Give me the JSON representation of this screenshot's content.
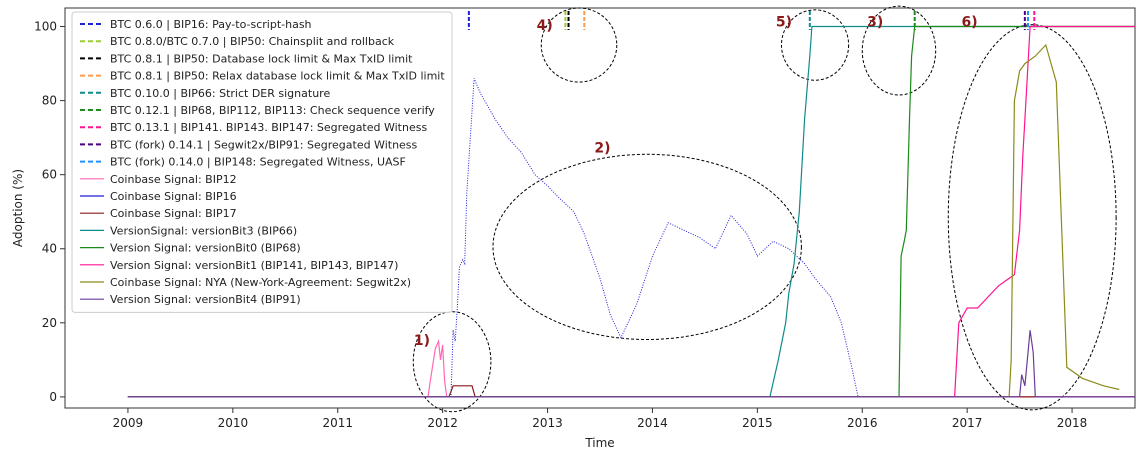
{
  "chart_data": {
    "type": "line",
    "title": "",
    "xlabel": "Time",
    "ylabel": "Adoption (%)",
    "xlim": [
      2008.4,
      2018.6
    ],
    "ylim": [
      -3,
      105
    ],
    "x_ticks": [
      2009,
      2010,
      2011,
      2012,
      2013,
      2014,
      2015,
      2016,
      2017,
      2018
    ],
    "y_ticks": [
      0,
      20,
      40,
      60,
      80,
      100
    ],
    "grid": false,
    "legend_position": "top-left",
    "release_markers": [
      {
        "name": "BTC 0.6.0 | BIP16: Pay-to-script-hash",
        "x": 2012.25,
        "color": "#1f1fd6",
        "style": "dashed"
      },
      {
        "name": "BTC 0.8.0/BTC 0.7.0 | BIP50: Chainsplit and rollback",
        "x": 2013.17,
        "color": "#9acd32",
        "style": "dashed"
      },
      {
        "name": "BTC 0.8.1 | BIP50: Database  lock limit & Max TxID limit",
        "x": 2013.2,
        "color": "#000000",
        "style": "dashed"
      },
      {
        "name": "BTC 0.8.1 | BIP50: Relax database lock limit & Max TxID limit",
        "x": 2013.35,
        "color": "#ff9a4d",
        "style": "dashed"
      },
      {
        "name": "BTC 0.10.0 | BIP66: Strict DER signature",
        "x": 2015.5,
        "color": "#108a8a",
        "style": "dashed"
      },
      {
        "name": "BTC 0.12.1 | BIP68, BIP112, BIP113: Check sequence verify",
        "x": 2016.5,
        "color": "#1a8a1a",
        "style": "dashed"
      },
      {
        "name": "BTC 0.13.1 | BIP141. BIP143. BIP147: Segregated Witness",
        "x": 2017.64,
        "color": "#ff1493",
        "style": "dashed"
      },
      {
        "name": "BTC (fork) 0.14.1 | Segwit2x/BIP91: Segregated Witness",
        "x": 2017.55,
        "color": "#4b0082",
        "style": "dashed"
      },
      {
        "name": "BTC (fork) 0.14.0 | BIP148: Segregated Witness, UASF",
        "x": 2017.58,
        "color": "#1e90ff",
        "style": "dashed"
      }
    ],
    "series": [
      {
        "name": "Coinbase Signal: BIP12",
        "color": "#ff69b4",
        "x": [
          2009,
          2011.86,
          2011.88,
          2011.93,
          2011.96,
          2011.98,
          2012.0,
          2012.02,
          2012.04,
          2018.6
        ],
        "y": [
          0,
          0,
          4,
          13,
          15,
          10,
          14,
          4,
          0,
          0
        ]
      },
      {
        "name": "Coinbase Signal: BIP16",
        "color": "#1f1fd6",
        "x": [
          2009,
          2012.08,
          2012.1,
          2012.12,
          2012.14,
          2012.16,
          2012.19,
          2012.21,
          2012.23,
          2012.3,
          2012.36,
          2012.5,
          2012.62,
          2012.75,
          2012.88,
          2013.0,
          2013.1,
          2013.25,
          2013.35,
          2013.5,
          2013.6,
          2013.7,
          2013.85,
          2014.0,
          2014.15,
          2014.3,
          2014.45,
          2014.6,
          2014.75,
          2014.9,
          2015.0,
          2015.15,
          2015.3,
          2015.45,
          2015.55,
          2015.7,
          2015.8,
          2015.9,
          2015.96
        ],
        "y": [
          0,
          0,
          18,
          15,
          24,
          35,
          37,
          36,
          55,
          86,
          82,
          75,
          70,
          66,
          60,
          57,
          54,
          50,
          44,
          32,
          22,
          16,
          25,
          38,
          47,
          45,
          43,
          40,
          49,
          44,
          38,
          42,
          40,
          36,
          32,
          27,
          20,
          8,
          0
        ]
      },
      {
        "name": "Coinbase Signal: BIP17",
        "color": "#8b1a1a",
        "x": [
          2009,
          2012.06,
          2012.1,
          2012.2,
          2012.28,
          2012.31,
          2018.6
        ],
        "y": [
          0,
          0,
          3,
          3,
          3,
          0,
          0
        ]
      },
      {
        "name": "VersionSignal: versionBit3 (BIP66)",
        "color": "#108a8a",
        "x": [
          2009,
          2015.12,
          2015.2,
          2015.27,
          2015.3,
          2015.35,
          2015.4,
          2015.45,
          2015.5,
          2015.52,
          2018.6
        ],
        "y": [
          0,
          0,
          10,
          20,
          28,
          36,
          50,
          75,
          92,
          100,
          100
        ]
      },
      {
        "name": "Version Signal: versionBit0 (BIP68)",
        "color": "#1a8a1a",
        "x": [
          2009,
          2016.35,
          2016.37,
          2016.4,
          2016.42,
          2016.45,
          2016.47,
          2016.5,
          2018.6
        ],
        "y": [
          0,
          0,
          38,
          42,
          45,
          75,
          92,
          100,
          100
        ]
      },
      {
        "name": "Version Signal: versionBit1 (BIP141, BIP143, BIP147)",
        "color": "#ff1493",
        "x": [
          2009,
          2016.88,
          2016.92,
          2017.0,
          2017.1,
          2017.2,
          2017.3,
          2017.4,
          2017.45,
          2017.5,
          2017.53,
          2017.57,
          2017.6,
          2018.6
        ],
        "y": [
          0,
          0,
          20,
          24,
          24,
          27,
          30,
          32,
          33,
          45,
          65,
          85,
          100,
          100
        ]
      },
      {
        "name": "Coinbase Signal: NYA (New-York-Agreement: Segwit2x)",
        "color": "#8b8b1a",
        "x": [
          2009,
          2017.4,
          2017.42,
          2017.45,
          2017.5,
          2017.55,
          2017.65,
          2017.75,
          2017.85,
          2017.95,
          2018.1,
          2018.3,
          2018.45
        ],
        "y": [
          0,
          0,
          10,
          80,
          88,
          90,
          92,
          95,
          85,
          8,
          5,
          3,
          2
        ]
      },
      {
        "name": "Version Signal: versionBit4 (BIP91)",
        "color": "#6a3d9a",
        "x": [
          2009,
          2017.5,
          2017.52,
          2017.55,
          2017.6,
          2017.63,
          2017.65,
          2018.6
        ],
        "y": [
          0,
          0,
          6,
          3,
          18,
          12,
          0,
          0
        ]
      }
    ],
    "annotations": [
      {
        "label": "1)",
        "x": 2011.88,
        "y": 14
      },
      {
        "label": "2)",
        "x": 2013.6,
        "y": 66
      },
      {
        "label": "3)",
        "x": 2016.2,
        "y": 100
      },
      {
        "label": "4)",
        "x": 2013.05,
        "y": 99
      },
      {
        "label": "5)",
        "x": 2015.33,
        "y": 100
      },
      {
        "label": "6)",
        "x": 2017.1,
        "y": 100
      }
    ],
    "highlight_regions": [
      {
        "label": "1)",
        "cx": 2012.09,
        "cy": 9.5,
        "rx": 0.37,
        "ry": 13.5
      },
      {
        "label": "2)",
        "cx": 2013.95,
        "cy": 40.5,
        "rx": 1.47,
        "ry": 25
      },
      {
        "label": "3)",
        "cx": 2016.35,
        "cy": 93.5,
        "rx": 0.35,
        "ry": 12
      },
      {
        "label": "4)",
        "cx": 2013.3,
        "cy": 95,
        "rx": 0.36,
        "ry": 10
      },
      {
        "label": "5)",
        "cx": 2015.55,
        "cy": 95,
        "rx": 0.32,
        "ry": 9.5
      },
      {
        "label": "6)",
        "cx": 2017.62,
        "cy": 48.5,
        "rx": 0.8,
        "ry": 52
      }
    ]
  }
}
